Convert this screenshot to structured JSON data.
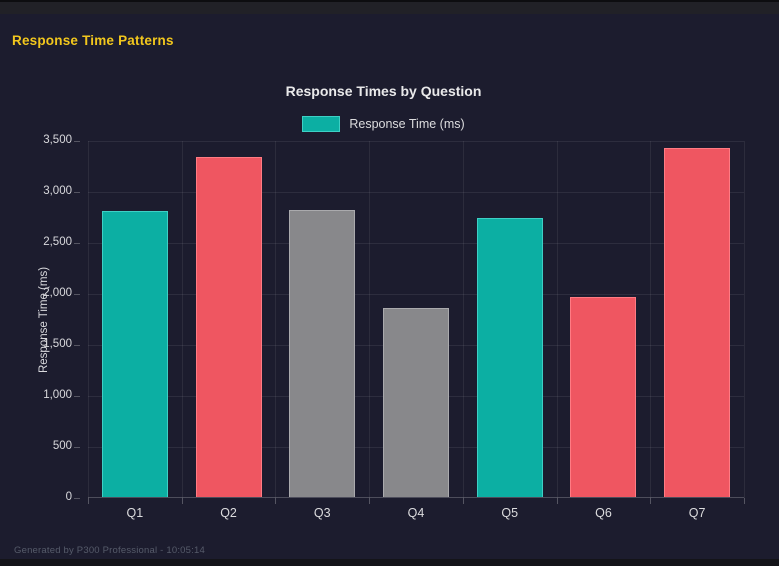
{
  "header": {
    "title": "Response Time Patterns"
  },
  "footer": {
    "text": "Generated by P300 Professional - 10:05:14"
  },
  "colors": {
    "background": "#1c1c2e",
    "topbar": "#212127",
    "header_yellow": "#f2c71d",
    "teal": "#0cafa3",
    "red": "#ef5661",
    "gray": "#88888b"
  },
  "chart_data": {
    "type": "bar",
    "title": "Response Times by Question",
    "legend": [
      {
        "label": "Response Time (ms)",
        "color": "#0cafa3",
        "border": "#3ed0c5"
      }
    ],
    "categories": [
      "Q1",
      "Q2",
      "Q3",
      "Q4",
      "Q5",
      "Q6",
      "Q7"
    ],
    "values": [
      2800,
      3330,
      2810,
      1850,
      2740,
      1960,
      3420
    ],
    "bar_colors": [
      "#0cafa3",
      "#ef5661",
      "#88888b",
      "#88888b",
      "#0cafa3",
      "#ef5661",
      "#ef5661"
    ],
    "bar_border_colors": [
      "#3ed0c5",
      "#ff7b83",
      "#aaaaad",
      "#aaaaad",
      "#3ed0c5",
      "#ff7b83",
      "#ff7b83"
    ],
    "xlabel": "",
    "ylabel": "Response Time (ms)",
    "ylim": [
      0,
      3500
    ],
    "ytick_step": 500,
    "yticks": [
      "0",
      "500",
      "1,000",
      "1,500",
      "2,000",
      "2,500",
      "3,000",
      "3,500"
    ],
    "grid": true,
    "legend_position": "top-center"
  }
}
